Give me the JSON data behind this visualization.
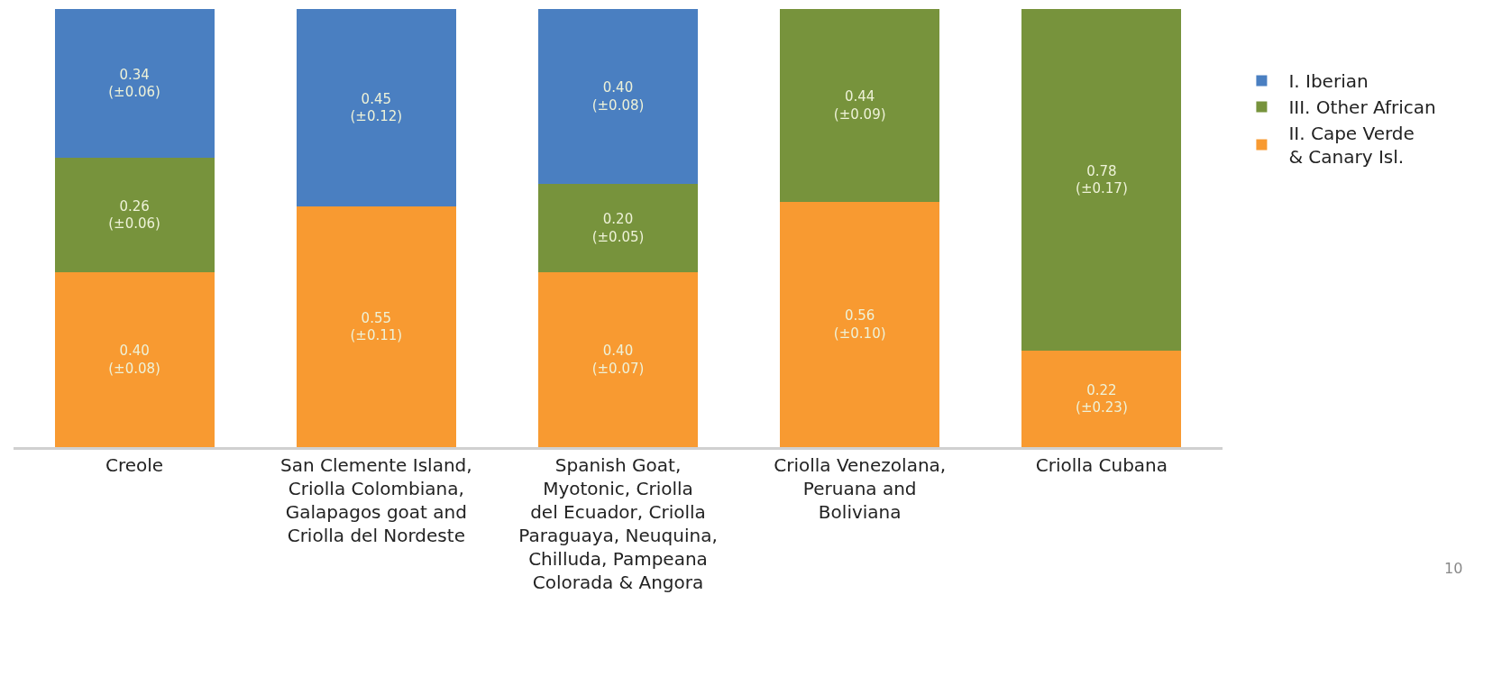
{
  "chart_data": {
    "type": "bar",
    "stacked": true,
    "legend": "right",
    "categories": [
      "Creole",
      "San Clemente Island, Criolla Colombiana, Galapagos goat and Criolla del Nordeste",
      "Spanish Goat, Myotonic, Criolla del Ecuador, Criolla Paraguaya, Neuquina, Chilluda, Pampeana Colorada & Angora",
      "Criolla Venezolana, Peruana and Boliviana",
      "Criolla Cubana"
    ],
    "series": [
      {
        "name": "II. Cape Verde\n& Canary Isl.",
        "color": "#f89a31",
        "values": [
          0.4,
          0.55,
          0.4,
          0.56,
          0.22
        ],
        "value_labels": [
          "0.40\n(±0.08)",
          "0.55\n(±0.11)",
          "0.40\n(±0.07)",
          "0.56\n(±0.10)",
          "0.22\n(±0.23)"
        ]
      },
      {
        "name": "III. Other African",
        "color": "#77933c",
        "values": [
          0.26,
          null,
          0.2,
          0.44,
          0.78
        ],
        "value_labels": [
          "0.26\n(±0.06)",
          null,
          "0.20\n(±0.05)",
          "0.44\n(±0.09)",
          "0.78\n(±0.17)"
        ]
      },
      {
        "name": "I. Iberian",
        "color": "#4a7fc1",
        "values": [
          0.34,
          0.45,
          0.4,
          null,
          null
        ],
        "value_labels": [
          "0.34\n(±0.06)",
          "0.45\n(±0.12)",
          "0.40\n(±0.08)",
          null,
          null
        ]
      }
    ],
    "annotations": [
      "10"
    ]
  }
}
